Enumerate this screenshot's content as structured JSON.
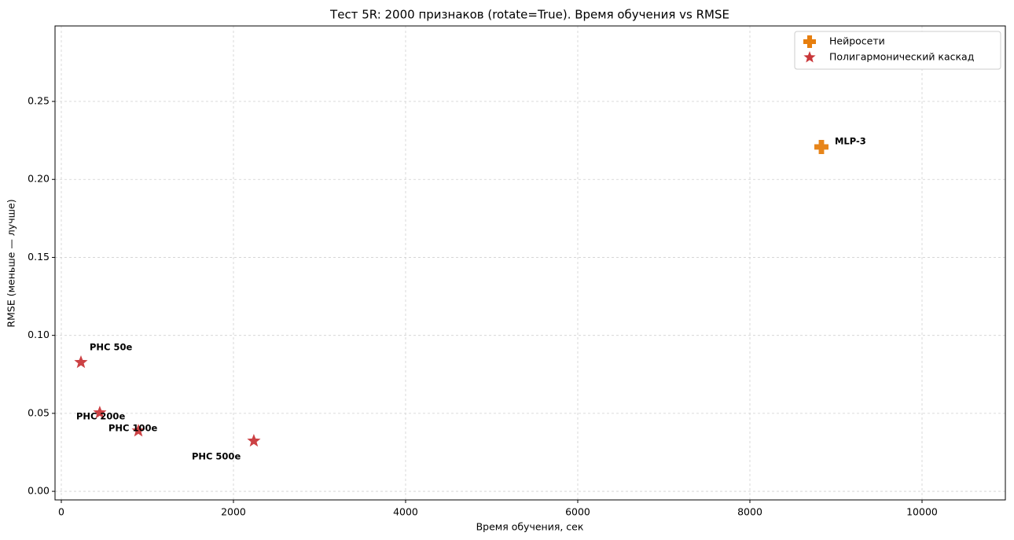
{
  "chart_data": {
    "type": "scatter",
    "title": "Тест 5R: 2000 признаков (rotate=True). Время обучения vs RMSE",
    "x_label": "Время обучения, сек",
    "y_label": "RMSE (меньше — лучше)",
    "xlim": [
      -73,
      10968
    ],
    "ylim": [
      -0.0055,
      0.2984
    ],
    "xticks": [
      0,
      2000,
      4000,
      6000,
      8000,
      10000
    ],
    "yticks": [
      {
        "value": 0,
        "label": "0.00"
      },
      {
        "value": 0.05,
        "label": "0.05"
      },
      {
        "value": 0.1,
        "label": "0.10"
      },
      {
        "value": 0.15,
        "label": "0.15"
      },
      {
        "value": 0.2,
        "label": "0.20"
      },
      {
        "value": 0.25,
        "label": "0.25"
      }
    ],
    "grid": true,
    "legend": "upper right",
    "series": [
      {
        "name": "Нейросети",
        "color": "#e67e0e",
        "marker": "plus",
        "x": [
          8831
        ],
        "values": [
          0.2208
        ],
        "point_labels": [
          "MLP-3"
        ]
      },
      {
        "name": "Полигармонический каскад",
        "color": "#c9373a",
        "marker": "star",
        "x": [
          228,
          447,
          895,
          2237
        ],
        "values": [
          0.0827,
          0.0504,
          0.0388,
          0.0323
        ],
        "point_labels": [
          "PHC 50e",
          "PHC 200e",
          "PHC 100e",
          "PHC 500e"
        ]
      }
    ]
  }
}
